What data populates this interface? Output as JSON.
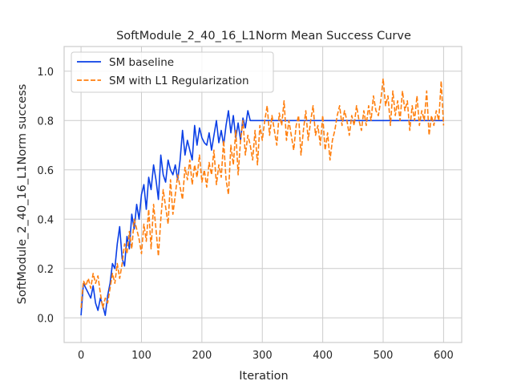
{
  "chart_data": {
    "type": "line",
    "title": "SoftModule_2_40_16_L1Norm Mean Success Curve",
    "xlabel": "Iteration",
    "ylabel": "SoftModule_2_40_16_L1Norm success",
    "xlim": [
      -28,
      630
    ],
    "ylim": [
      -0.1,
      1.1
    ],
    "xticks": [
      0,
      100,
      200,
      300,
      400,
      500,
      600
    ],
    "yticks": [
      0.0,
      0.2,
      0.4,
      0.6,
      0.8,
      1.0
    ],
    "xtick_labels": [
      "0",
      "100",
      "200",
      "300",
      "400",
      "500",
      "600"
    ],
    "ytick_labels": [
      "0.0",
      "0.2",
      "0.4",
      "0.6",
      "0.8",
      "1.0"
    ],
    "grid": true,
    "legend": "top-left",
    "series": [
      {
        "name": "SM baseline",
        "color": "#0a3fe6",
        "dash": "solid",
        "x": [
          0,
          4,
          8,
          12,
          16,
          20,
          24,
          28,
          32,
          36,
          40,
          44,
          48,
          52,
          56,
          60,
          64,
          68,
          72,
          76,
          80,
          84,
          88,
          92,
          96,
          100,
          104,
          108,
          112,
          116,
          120,
          124,
          128,
          132,
          136,
          140,
          144,
          148,
          152,
          156,
          160,
          164,
          168,
          172,
          176,
          180,
          184,
          188,
          192,
          196,
          200,
          204,
          208,
          212,
          216,
          220,
          224,
          228,
          232,
          236,
          240,
          244,
          248,
          252,
          256,
          260,
          264,
          268,
          272,
          276,
          280,
          600
        ],
        "y": [
          0.01,
          0.14,
          0.12,
          0.1,
          0.08,
          0.13,
          0.06,
          0.03,
          0.08,
          0.05,
          0.01,
          0.09,
          0.14,
          0.22,
          0.2,
          0.3,
          0.37,
          0.24,
          0.21,
          0.33,
          0.28,
          0.42,
          0.36,
          0.46,
          0.4,
          0.5,
          0.54,
          0.44,
          0.57,
          0.52,
          0.62,
          0.56,
          0.48,
          0.66,
          0.58,
          0.55,
          0.64,
          0.6,
          0.58,
          0.62,
          0.56,
          0.64,
          0.76,
          0.66,
          0.72,
          0.68,
          0.64,
          0.78,
          0.7,
          0.77,
          0.73,
          0.71,
          0.7,
          0.75,
          0.68,
          0.74,
          0.8,
          0.71,
          0.76,
          0.7,
          0.78,
          0.84,
          0.75,
          0.82,
          0.73,
          0.79,
          0.72,
          0.81,
          0.77,
          0.84,
          0.8,
          0.8
        ]
      },
      {
        "name": "SM with L1 Regularization",
        "color": "#ff7f0e",
        "dash": "dashed",
        "x": [
          0,
          4,
          8,
          12,
          16,
          20,
          24,
          28,
          32,
          36,
          40,
          44,
          48,
          52,
          56,
          60,
          64,
          68,
          72,
          76,
          80,
          84,
          88,
          92,
          96,
          100,
          104,
          108,
          112,
          116,
          120,
          124,
          128,
          132,
          136,
          140,
          144,
          148,
          152,
          156,
          160,
          164,
          168,
          172,
          176,
          180,
          184,
          188,
          192,
          196,
          200,
          204,
          208,
          212,
          216,
          220,
          224,
          228,
          232,
          236,
          240,
          244,
          248,
          252,
          256,
          260,
          264,
          268,
          272,
          276,
          280,
          284,
          288,
          292,
          296,
          300,
          304,
          308,
          312,
          316,
          320,
          324,
          328,
          332,
          336,
          340,
          344,
          348,
          352,
          356,
          360,
          364,
          368,
          372,
          376,
          380,
          384,
          388,
          392,
          396,
          400,
          404,
          408,
          412,
          416,
          420,
          424,
          428,
          432,
          436,
          440,
          444,
          448,
          452,
          456,
          460,
          464,
          468,
          472,
          476,
          480,
          484,
          488,
          492,
          496,
          500,
          504,
          508,
          512,
          516,
          520,
          524,
          528,
          532,
          536,
          540,
          544,
          548,
          552,
          556,
          560,
          564,
          568,
          572,
          576,
          580,
          584,
          588,
          592,
          596,
          600
        ],
        "y": [
          0.04,
          0.15,
          0.13,
          0.16,
          0.12,
          0.18,
          0.14,
          0.17,
          0.1,
          0.04,
          0.08,
          0.06,
          0.12,
          0.18,
          0.14,
          0.22,
          0.16,
          0.22,
          0.3,
          0.26,
          0.35,
          0.28,
          0.4,
          0.36,
          0.32,
          0.26,
          0.38,
          0.31,
          0.44,
          0.28,
          0.46,
          0.36,
          0.25,
          0.4,
          0.52,
          0.45,
          0.38,
          0.56,
          0.42,
          0.5,
          0.58,
          0.53,
          0.48,
          0.61,
          0.56,
          0.64,
          0.54,
          0.62,
          0.57,
          0.66,
          0.55,
          0.6,
          0.53,
          0.63,
          0.58,
          0.68,
          0.54,
          0.62,
          0.57,
          0.72,
          0.56,
          0.5,
          0.7,
          0.62,
          0.76,
          0.58,
          0.72,
          0.8,
          0.66,
          0.74,
          0.7,
          0.64,
          0.76,
          0.62,
          0.78,
          0.72,
          0.8,
          0.86,
          0.74,
          0.82,
          0.76,
          0.7,
          0.83,
          0.78,
          0.88,
          0.72,
          0.8,
          0.74,
          0.68,
          0.78,
          0.82,
          0.66,
          0.76,
          0.84,
          0.72,
          0.8,
          0.86,
          0.74,
          0.78,
          0.7,
          0.82,
          0.68,
          0.75,
          0.64,
          0.72,
          0.76,
          0.82,
          0.86,
          0.78,
          0.84,
          0.8,
          0.74,
          0.82,
          0.78,
          0.86,
          0.8,
          0.76,
          0.84,
          0.78,
          0.86,
          0.8,
          0.9,
          0.84,
          0.82,
          0.88,
          0.97,
          0.86,
          0.9,
          0.78,
          0.92,
          0.82,
          0.88,
          0.8,
          0.92,
          0.84,
          0.88,
          0.76,
          0.86,
          0.8,
          0.9,
          0.78,
          0.84,
          0.8,
          0.92,
          0.74,
          0.82,
          0.78,
          0.84,
          0.8,
          0.96,
          0.78
        ]
      }
    ]
  }
}
